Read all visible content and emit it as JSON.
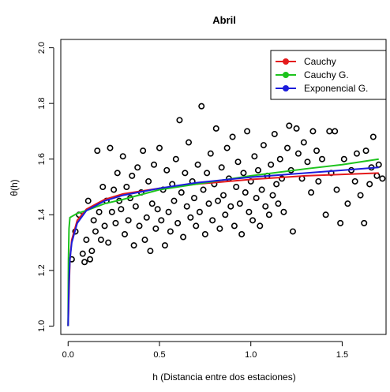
{
  "chart_data": {
    "type": "scatter",
    "title": "Abril",
    "xlabel": "h (Distancia entre dos estaciones)",
    "ylabel": "θ(h)",
    "xlim": [
      -0.04,
      1.74
    ],
    "ylim": [
      0.97,
      2.03
    ],
    "xticks": [
      0.0,
      0.5,
      1.0,
      1.5
    ],
    "xtick_labels": [
      "0.0",
      "0.5",
      "1.0",
      "1.5"
    ],
    "yticks": [
      1.0,
      1.2,
      1.4,
      1.6,
      1.8,
      2.0
    ],
    "ytick_labels": [
      "1.0",
      "1.2",
      "1.4",
      "1.6",
      "1.8",
      "2.0"
    ],
    "grid": false,
    "legend_position": "top-right",
    "scatter_points": [
      [
        0.02,
        1.24
      ],
      [
        0.04,
        1.34
      ],
      [
        0.06,
        1.4
      ],
      [
        0.08,
        1.26
      ],
      [
        0.09,
        1.23
      ],
      [
        0.1,
        1.31
      ],
      [
        0.11,
        1.45
      ],
      [
        0.12,
        1.24
      ],
      [
        0.13,
        1.27
      ],
      [
        0.14,
        1.38
      ],
      [
        0.15,
        1.34
      ],
      [
        0.16,
        1.63
      ],
      [
        0.17,
        1.41
      ],
      [
        0.18,
        1.31
      ],
      [
        0.19,
        1.5
      ],
      [
        0.2,
        1.36
      ],
      [
        0.21,
        1.45
      ],
      [
        0.22,
        1.3
      ],
      [
        0.23,
        1.64
      ],
      [
        0.24,
        1.41
      ],
      [
        0.25,
        1.49
      ],
      [
        0.26,
        1.37
      ],
      [
        0.27,
        1.55
      ],
      [
        0.28,
        1.45
      ],
      [
        0.29,
        1.42
      ],
      [
        0.3,
        1.61
      ],
      [
        0.31,
        1.33
      ],
      [
        0.32,
        1.5
      ],
      [
        0.33,
        1.38
      ],
      [
        0.34,
        1.46
      ],
      [
        0.35,
        1.54
      ],
      [
        0.36,
        1.29
      ],
      [
        0.37,
        1.43
      ],
      [
        0.38,
        1.57
      ],
      [
        0.39,
        1.36
      ],
      [
        0.4,
        1.48
      ],
      [
        0.41,
        1.63
      ],
      [
        0.42,
        1.31
      ],
      [
        0.43,
        1.39
      ],
      [
        0.44,
        1.52
      ],
      [
        0.45,
        1.27
      ],
      [
        0.46,
        1.44
      ],
      [
        0.47,
        1.58
      ],
      [
        0.48,
        1.35
      ],
      [
        0.49,
        1.42
      ],
      [
        0.5,
        1.64
      ],
      [
        0.51,
        1.38
      ],
      [
        0.52,
        1.49
      ],
      [
        0.53,
        1.29
      ],
      [
        0.54,
        1.56
      ],
      [
        0.55,
        1.41
      ],
      [
        0.56,
        1.34
      ],
      [
        0.57,
        1.51
      ],
      [
        0.58,
        1.45
      ],
      [
        0.59,
        1.6
      ],
      [
        0.6,
        1.37
      ],
      [
        0.61,
        1.74
      ],
      [
        0.62,
        1.48
      ],
      [
        0.63,
        1.32
      ],
      [
        0.64,
        1.55
      ],
      [
        0.65,
        1.43
      ],
      [
        0.66,
        1.66
      ],
      [
        0.67,
        1.39
      ],
      [
        0.68,
        1.52
      ],
      [
        0.69,
        1.46
      ],
      [
        0.7,
        1.36
      ],
      [
        0.71,
        1.58
      ],
      [
        0.72,
        1.41
      ],
      [
        0.73,
        1.79
      ],
      [
        0.74,
        1.49
      ],
      [
        0.75,
        1.33
      ],
      [
        0.76,
        1.55
      ],
      [
        0.77,
        1.44
      ],
      [
        0.78,
        1.62
      ],
      [
        0.79,
        1.38
      ],
      [
        0.8,
        1.51
      ],
      [
        0.81,
        1.71
      ],
      [
        0.82,
        1.45
      ],
      [
        0.83,
        1.35
      ],
      [
        0.84,
        1.57
      ],
      [
        0.85,
        1.47
      ],
      [
        0.86,
        1.4
      ],
      [
        0.87,
        1.64
      ],
      [
        0.88,
        1.53
      ],
      [
        0.89,
        1.43
      ],
      [
        0.9,
        1.68
      ],
      [
        0.91,
        1.36
      ],
      [
        0.92,
        1.5
      ],
      [
        0.93,
        1.59
      ],
      [
        0.94,
        1.44
      ],
      [
        0.95,
        1.33
      ],
      [
        0.96,
        1.55
      ],
      [
        0.97,
        1.48
      ],
      [
        0.98,
        1.7
      ],
      [
        0.99,
        1.41
      ],
      [
        1.0,
        1.52
      ],
      [
        1.01,
        1.38
      ],
      [
        1.02,
        1.61
      ],
      [
        1.03,
        1.46
      ],
      [
        1.04,
        1.56
      ],
      [
        1.05,
        1.36
      ],
      [
        1.06,
        1.49
      ],
      [
        1.07,
        1.65
      ],
      [
        1.08,
        1.43
      ],
      [
        1.09,
        1.54
      ],
      [
        1.1,
        1.4
      ],
      [
        1.11,
        1.58
      ],
      [
        1.12,
        1.47
      ],
      [
        1.13,
        1.69
      ],
      [
        1.14,
        1.51
      ],
      [
        1.15,
        1.44
      ],
      [
        1.16,
        1.6
      ],
      [
        1.17,
        1.53
      ],
      [
        1.18,
        1.41
      ],
      [
        1.2,
        1.64
      ],
      [
        1.21,
        1.72
      ],
      [
        1.22,
        1.56
      ],
      [
        1.23,
        1.34
      ],
      [
        1.25,
        1.71
      ],
      [
        1.26,
        1.62
      ],
      [
        1.28,
        1.53
      ],
      [
        1.29,
        1.66
      ],
      [
        1.31,
        1.59
      ],
      [
        1.33,
        1.48
      ],
      [
        1.34,
        1.7
      ],
      [
        1.36,
        1.63
      ],
      [
        1.37,
        1.52
      ],
      [
        1.39,
        1.6
      ],
      [
        1.41,
        1.4
      ],
      [
        1.43,
        1.7
      ],
      [
        1.44,
        1.55
      ],
      [
        1.46,
        1.7
      ],
      [
        1.47,
        1.49
      ],
      [
        1.49,
        1.37
      ],
      [
        1.51,
        1.6
      ],
      [
        1.53,
        1.44
      ],
      [
        1.55,
        1.56
      ],
      [
        1.57,
        1.52
      ],
      [
        1.58,
        1.62
      ],
      [
        1.6,
        1.47
      ],
      [
        1.62,
        1.37
      ],
      [
        1.63,
        1.63
      ],
      [
        1.65,
        1.51
      ],
      [
        1.66,
        1.57
      ],
      [
        1.67,
        1.68
      ],
      [
        1.69,
        1.54
      ],
      [
        1.7,
        1.58
      ],
      [
        1.72,
        1.53
      ]
    ],
    "series": [
      {
        "name": "Cauchy",
        "color": "#e41a1c",
        "x": [
          0.0,
          0.01,
          0.02,
          0.05,
          0.1,
          0.2,
          0.3,
          0.5,
          0.7,
          1.0,
          1.3,
          1.5,
          1.7
        ],
        "y": [
          1.0,
          1.24,
          1.31,
          1.38,
          1.42,
          1.455,
          1.475,
          1.495,
          1.51,
          1.527,
          1.54,
          1.545,
          1.55
        ]
      },
      {
        "name": "Cauchy G.",
        "color": "#1ec31e",
        "x": [
          0.0,
          0.002,
          0.005,
          0.01,
          0.05,
          0.1,
          0.2,
          0.3,
          0.5,
          0.7,
          1.0,
          1.3,
          1.5,
          1.7
        ],
        "y": [
          1.0,
          1.24,
          1.35,
          1.39,
          1.405,
          1.415,
          1.44,
          1.455,
          1.49,
          1.51,
          1.54,
          1.565,
          1.58,
          1.6
        ]
      },
      {
        "name": "Exponencial G.",
        "color": "#1c1cdb",
        "x": [
          0.0,
          0.005,
          0.01,
          0.02,
          0.05,
          0.1,
          0.2,
          0.3,
          0.5,
          0.7,
          1.0,
          1.3,
          1.5,
          1.7
        ],
        "y": [
          1.0,
          1.16,
          1.24,
          1.3,
          1.37,
          1.415,
          1.45,
          1.47,
          1.495,
          1.515,
          1.535,
          1.55,
          1.56,
          1.57
        ]
      }
    ]
  }
}
